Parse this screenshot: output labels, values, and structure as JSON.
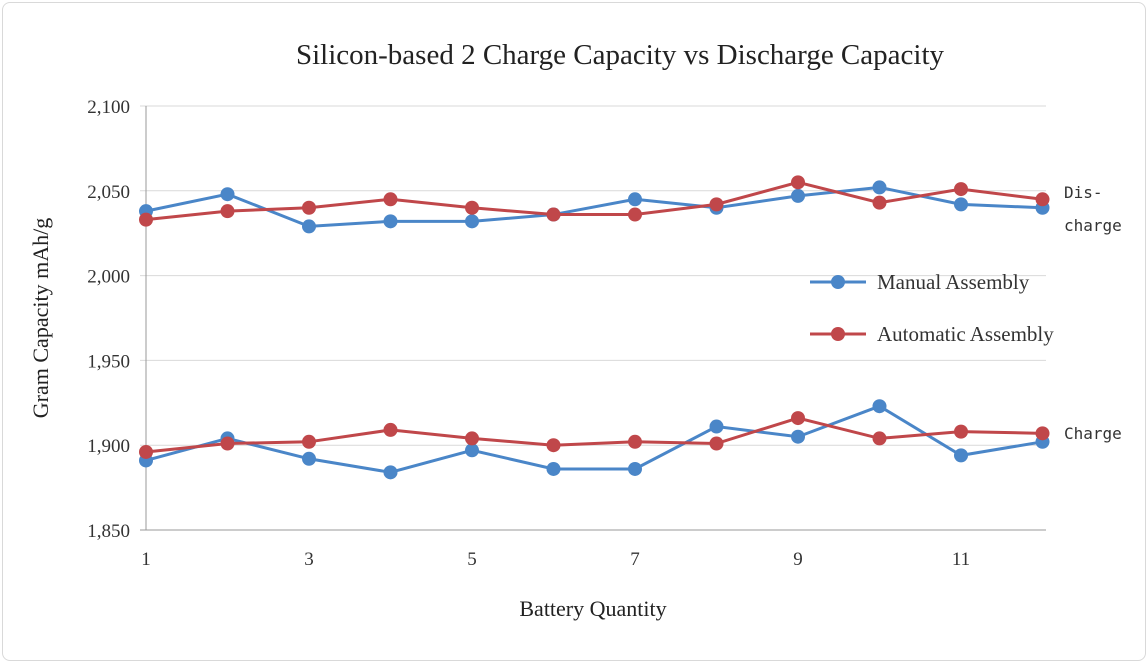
{
  "chart_data": {
    "type": "line",
    "title": "Silicon-based 2 Charge Capacity vs Discharge Capacity",
    "xlabel": "Battery Quantity",
    "ylabel": "Gram Capacity mAh/g",
    "x": [
      1,
      2,
      3,
      4,
      5,
      6,
      7,
      8,
      9,
      10,
      11,
      12
    ],
    "xticks": [
      "1",
      "3",
      "5",
      "7",
      "9",
      "11"
    ],
    "xtick_values": [
      1,
      3,
      5,
      7,
      9,
      11
    ],
    "ylim": [
      1850,
      2100
    ],
    "yticks": [
      1850,
      1900,
      1950,
      2000,
      2050,
      2100
    ],
    "ytick_labels": [
      "1,850",
      "1,900",
      "1,950",
      "2,000",
      "2,050",
      "2,100"
    ],
    "grid": true,
    "legend_position": "right",
    "legend": [
      {
        "name": "Manual Assembly",
        "color": "#4a86c8"
      },
      {
        "name": "Automatic Assembly",
        "color": "#c0474a"
      }
    ],
    "annotations": {
      "discharge": [
        "Dis-",
        "charge"
      ],
      "charge": "Charge"
    },
    "series": [
      {
        "name": "Manual Assembly",
        "group": "Discharge",
        "color": "#4a86c8",
        "values": [
          2038,
          2048,
          2029,
          2032,
          2032,
          2036,
          2045,
          2040,
          2047,
          2052,
          2042,
          2040
        ]
      },
      {
        "name": "Automatic Assembly",
        "group": "Discharge",
        "color": "#c0474a",
        "values": [
          2033,
          2038,
          2040,
          2045,
          2040,
          2036,
          2036,
          2042,
          2055,
          2043,
          2051,
          2045
        ]
      },
      {
        "name": "Manual Assembly",
        "group": "Charge",
        "color": "#4a86c8",
        "values": [
          1891,
          1904,
          1892,
          1884,
          1897,
          1886,
          1886,
          1911,
          1905,
          1923,
          1894,
          1902
        ]
      },
      {
        "name": "Automatic Assembly",
        "group": "Charge",
        "color": "#c0474a",
        "values": [
          1896,
          1901,
          1902,
          1909,
          1904,
          1900,
          1902,
          1901,
          1916,
          1904,
          1908,
          1907
        ]
      }
    ]
  }
}
